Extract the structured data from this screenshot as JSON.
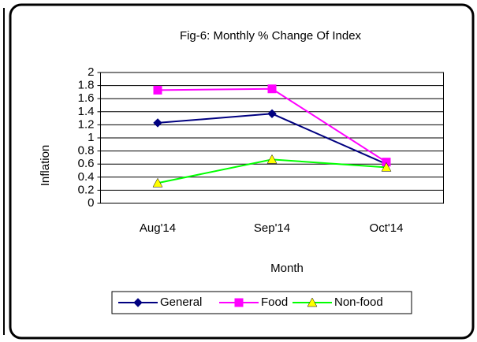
{
  "chart_data": {
    "type": "line",
    "title": "Fig-6: Monthly % Change Of Index",
    "x_label": "Month",
    "y_label": "Inflation",
    "categories": [
      "Aug'14",
      "Sep'14",
      "Oct'14"
    ],
    "series": [
      {
        "name": "General",
        "color": "#000080",
        "marker": "diamond",
        "marker_color": "#000080",
        "values": [
          1.23,
          1.37,
          0.6
        ]
      },
      {
        "name": "Food",
        "color": "#ff00ff",
        "marker": "square",
        "marker_color": "#ff00ff",
        "values": [
          1.73,
          1.75,
          0.63
        ]
      },
      {
        "name": "Non-food",
        "color": "#00ff00",
        "marker": "triangle",
        "marker_color": "#ffff00",
        "values": [
          0.31,
          0.67,
          0.55
        ]
      }
    ],
    "ylim": [
      0,
      2
    ],
    "yticks": [
      0,
      0.2,
      0.4,
      0.6,
      0.8,
      1,
      1.2,
      1.4,
      1.6,
      1.8,
      2
    ],
    "grid": true,
    "legend": "bottom"
  }
}
